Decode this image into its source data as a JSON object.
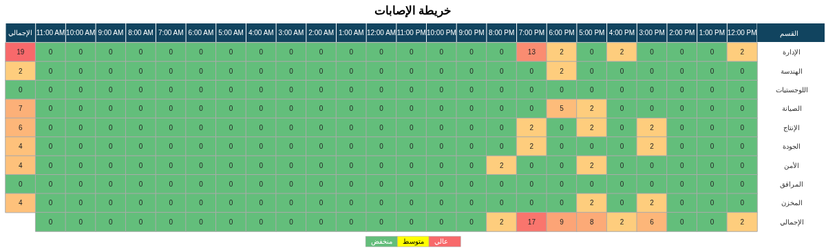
{
  "chart_data": {
    "type": "heatmap",
    "title": "خريطة الإصابات",
    "ylabel": "القسم",
    "categories": [
      "الإجمالي",
      "11:00 AM",
      "10:00 AM",
      "9:00 AM",
      "8:00 AM",
      "7:00 AM",
      "6:00 AM",
      "5:00 AM",
      "4:00 AM",
      "3:00 AM",
      "2:00 AM",
      "1:00 AM",
      "12:00 AM",
      "11:00 PM",
      "10:00 PM",
      "9:00 PM",
      "8:00 PM",
      "7:00 PM",
      "6:00 PM",
      "5:00 PM",
      "4:00 PM",
      "3:00 PM",
      "2:00 PM",
      "1:00 PM",
      "12:00 PM"
    ],
    "y_categories": [
      "الإدارة",
      "الهندسة",
      "اللوجستيات",
      "الصيانة",
      "الإنتاج",
      "الجودة",
      "الأمن",
      "المرافق",
      "المخزن",
      "الإجمالي"
    ],
    "cells": [
      [
        19,
        0,
        0,
        0,
        0,
        0,
        0,
        0,
        0,
        0,
        0,
        0,
        0,
        0,
        0,
        0,
        0,
        13,
        2,
        0,
        2,
        0,
        0,
        0,
        2
      ],
      [
        2,
        0,
        0,
        0,
        0,
        0,
        0,
        0,
        0,
        0,
        0,
        0,
        0,
        0,
        0,
        0,
        0,
        0,
        2,
        0,
        0,
        0,
        0,
        0,
        0
      ],
      [
        0,
        0,
        0,
        0,
        0,
        0,
        0,
        0,
        0,
        0,
        0,
        0,
        0,
        0,
        0,
        0,
        0,
        0,
        0,
        0,
        0,
        0,
        0,
        0,
        0
      ],
      [
        7,
        0,
        0,
        0,
        0,
        0,
        0,
        0,
        0,
        0,
        0,
        0,
        0,
        0,
        0,
        0,
        0,
        0,
        5,
        2,
        0,
        0,
        0,
        0,
        0
      ],
      [
        6,
        0,
        0,
        0,
        0,
        0,
        0,
        0,
        0,
        0,
        0,
        0,
        0,
        0,
        0,
        0,
        0,
        2,
        0,
        2,
        0,
        2,
        0,
        0,
        0
      ],
      [
        4,
        0,
        0,
        0,
        0,
        0,
        0,
        0,
        0,
        0,
        0,
        0,
        0,
        0,
        0,
        0,
        0,
        2,
        0,
        0,
        0,
        2,
        0,
        0,
        0
      ],
      [
        4,
        0,
        0,
        0,
        0,
        0,
        0,
        0,
        0,
        0,
        0,
        0,
        0,
        0,
        0,
        0,
        2,
        0,
        0,
        2,
        0,
        0,
        0,
        0,
        0
      ],
      [
        0,
        0,
        0,
        0,
        0,
        0,
        0,
        0,
        0,
        0,
        0,
        0,
        0,
        0,
        0,
        0,
        0,
        0,
        0,
        0,
        0,
        0,
        0,
        0,
        0
      ],
      [
        4,
        0,
        0,
        0,
        0,
        0,
        0,
        0,
        0,
        0,
        0,
        0,
        0,
        0,
        0,
        0,
        0,
        0,
        0,
        2,
        0,
        2,
        0,
        0,
        0
      ],
      [
        null,
        0,
        0,
        0,
        0,
        0,
        0,
        0,
        0,
        0,
        0,
        0,
        0,
        0,
        0,
        0,
        2,
        17,
        9,
        8,
        2,
        6,
        0,
        0,
        2
      ]
    ],
    "data_labels": true,
    "annotations": [
      "منخفض",
      "متوسط",
      "عالي"
    ]
  }
}
